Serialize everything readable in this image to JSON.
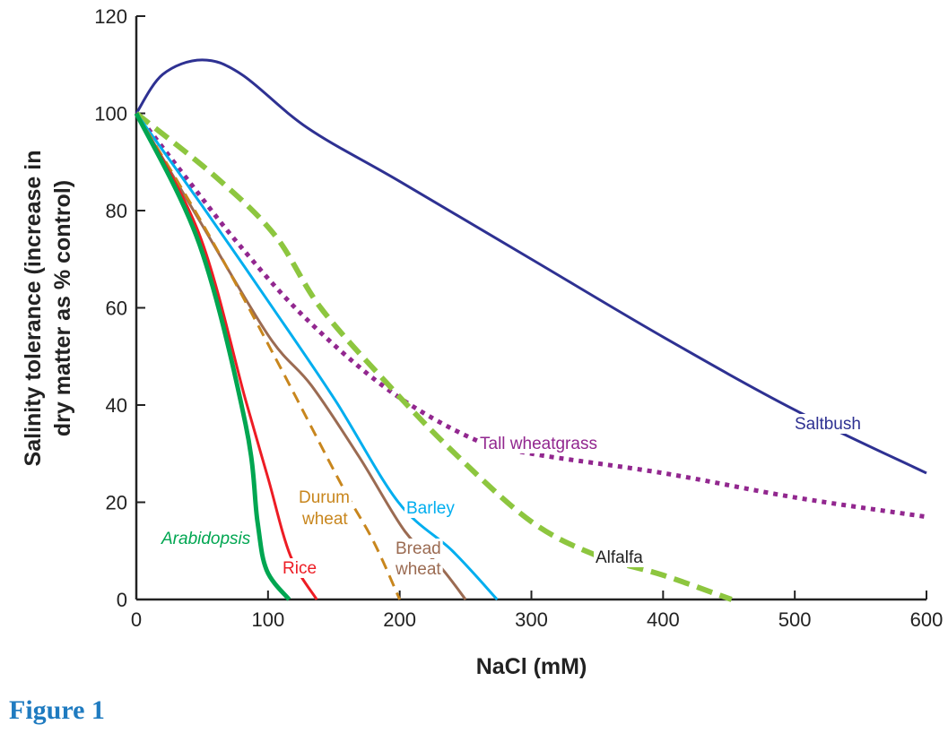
{
  "caption": "Figure 1",
  "chart_data": {
    "type": "line",
    "title": "",
    "xlabel": "NaCl (mM)",
    "ylabel_lines": [
      "Salinity tolerance (increase in",
      "dry matter as % control)"
    ],
    "xlim": [
      0,
      600
    ],
    "ylim": [
      0,
      120
    ],
    "xticks": [
      0,
      100,
      200,
      300,
      400,
      500,
      600
    ],
    "yticks": [
      0,
      20,
      40,
      60,
      80,
      100,
      120
    ],
    "grid": false,
    "legend": "inline labels",
    "series": [
      {
        "name": "Saltbush",
        "color": "#2e3192",
        "style": "solid",
        "x": [
          0,
          20,
          50,
          80,
          130,
          200,
          300,
          400,
          500,
          600
        ],
        "y": [
          100,
          108,
          111,
          108,
          97,
          86,
          70,
          54,
          39,
          26
        ]
      },
      {
        "name": "Tall wheatgrass",
        "color": "#92278f",
        "style": "dotted",
        "x": [
          0,
          40,
          78,
          128,
          192,
          256,
          300,
          400,
          500,
          600
        ],
        "y": [
          100,
          86,
          73,
          58,
          43,
          33,
          30,
          26,
          21,
          17
        ]
      },
      {
        "name": "Alfalfa",
        "color": "#8dc63f",
        "style": "dashed-thick",
        "x": [
          0,
          60,
          105,
          140,
          192,
          242,
          300,
          350,
          400,
          452
        ],
        "y": [
          100,
          87,
          75,
          60,
          44,
          30,
          16,
          9,
          5,
          0
        ]
      },
      {
        "name": "Barley",
        "color": "#00aeef",
        "style": "solid",
        "x": [
          0,
          50,
          101,
          151,
          199,
          240,
          274
        ],
        "y": [
          100,
          81,
          61,
          41,
          20,
          10,
          0
        ]
      },
      {
        "name": "Bread wheat",
        "color": "#9b6b52",
        "style": "solid",
        "x": [
          0,
          50,
          101,
          133,
          170,
          204,
          230,
          250
        ],
        "y": [
          100,
          77,
          54,
          44,
          29,
          14,
          7,
          0
        ]
      },
      {
        "name": "Durum wheat",
        "color": "#c8861d",
        "style": "dashed",
        "x": [
          0,
          53,
          105,
          155,
          180,
          200
        ],
        "y": [
          100,
          76,
          50,
          24,
          12,
          0
        ]
      },
      {
        "name": "Rice",
        "color": "#ed1c24",
        "style": "solid",
        "x": [
          0,
          48,
          83,
          100,
          117,
          137
        ],
        "y": [
          100,
          75,
          41,
          25,
          9,
          0
        ]
      },
      {
        "name": "Arabidopsis",
        "color": "#00a651",
        "style": "solid-thick",
        "x": [
          0,
          48,
          83,
          92,
          99,
          116
        ],
        "y": [
          100,
          73,
          36,
          16,
          6,
          0
        ]
      }
    ],
    "annotations": [
      "Saltbush",
      "Tall wheatgrass",
      "Alfalfa",
      "Barley",
      "Bread",
      "wheat",
      "Durum",
      "wheat",
      "Arabidopsis",
      "Rice"
    ]
  }
}
